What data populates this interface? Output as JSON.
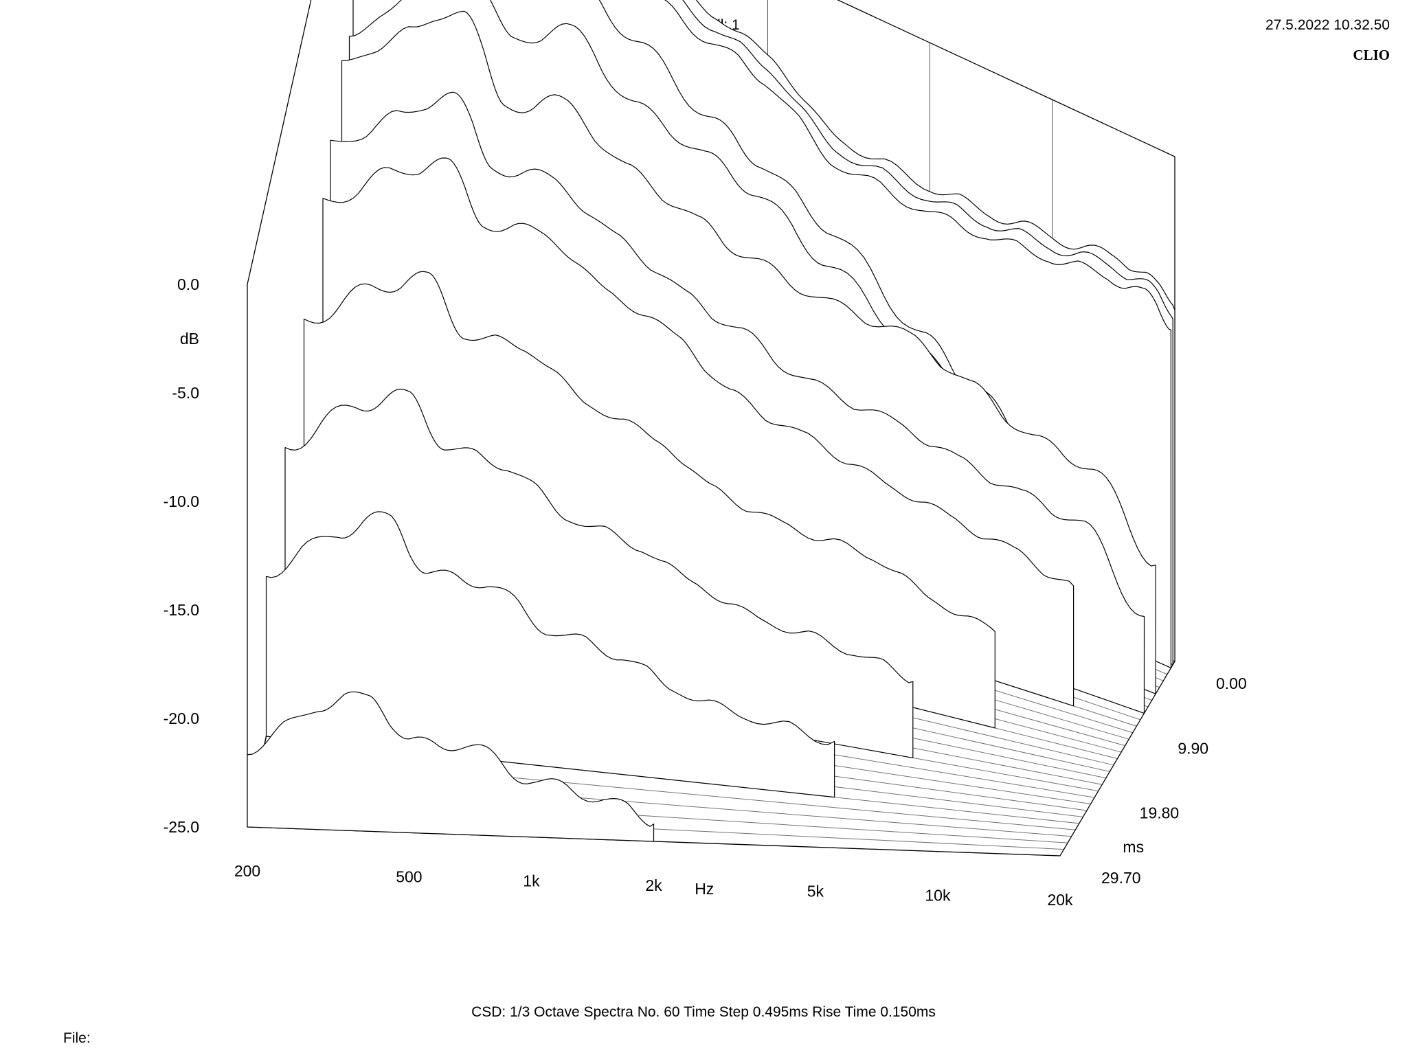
{
  "header": {
    "title": "Waterfall: 1",
    "datetime": "27.5.2022 10.32.50",
    "brand": "CLIO"
  },
  "footer": {
    "info": "CSD:   1/3 Octave   Spectra No. 60   Time Step 0.495ms   Rise Time 0.150ms",
    "file_label": "File:"
  },
  "colors": {
    "background": "#ffffff",
    "ink": "#000000"
  },
  "chart_data": {
    "type": "waterfall",
    "title": "Waterfall: 1",
    "xlabel": "Hz",
    "ylabel": "dB",
    "zlabel": "ms",
    "x_scale": "log",
    "xlim": [
      200,
      20000
    ],
    "ylim": [
      -25,
      0
    ],
    "zlim": [
      0,
      29.7
    ],
    "x_ticks": [
      {
        "value": 200,
        "label": "200"
      },
      {
        "value": 500,
        "label": "500"
      },
      {
        "value": 1000,
        "label": "1k"
      },
      {
        "value": 2000,
        "label": "2k"
      },
      {
        "value": 5000,
        "label": "5k"
      },
      {
        "value": 10000,
        "label": "10k"
      },
      {
        "value": 20000,
        "label": "20k"
      }
    ],
    "y_ticks": [
      {
        "value": 0,
        "label": "0.0"
      },
      {
        "value": -5,
        "label": "-5.0"
      },
      {
        "value": -10,
        "label": "-10.0"
      },
      {
        "value": -15,
        "label": "-15.0"
      },
      {
        "value": -20,
        "label": "-20.0"
      },
      {
        "value": -25,
        "label": "-25.0"
      }
    ],
    "z_ticks": [
      {
        "value": 0,
        "label": "0.00"
      },
      {
        "value": 9.9,
        "label": "9.90"
      },
      {
        "value": 19.8,
        "label": "19.80"
      },
      {
        "value": 29.7,
        "label": "29.70"
      }
    ],
    "spectra_count": 60,
    "time_step_ms": 0.495,
    "rise_time_ms": 0.15,
    "grid": true,
    "spectra": [
      {
        "time_ms": 0.0,
        "freqs": [
          200,
          300,
          400,
          500,
          700,
          1000,
          1500,
          2000,
          3000,
          5000,
          7000,
          10000,
          14000,
          17000,
          20000
        ],
        "db": [
          -5,
          -1.8,
          0.4,
          -3.5,
          -1.2,
          -2.6,
          -3.6,
          -4.4,
          -6.9,
          -7.2,
          -7.1,
          -6.8,
          -6.4,
          -6.3,
          -7.6
        ]
      },
      {
        "time_ms": 0.495,
        "freqs": [
          200,
          300,
          400,
          500,
          700,
          1000,
          1500,
          2000,
          3000,
          5000,
          7000,
          10000,
          14000,
          17000,
          20000
        ],
        "db": [
          -5.3,
          -2.2,
          0.1,
          -3.8,
          -1.6,
          -2.9,
          -3.9,
          -4.7,
          -7.2,
          -7.5,
          -7.4,
          -7.1,
          -6.7,
          -6.6,
          -7.9
        ]
      },
      {
        "time_ms": 0.99,
        "freqs": [
          200,
          300,
          400,
          500,
          700,
          1000,
          1500,
          2000,
          3000,
          5000,
          7000,
          10000,
          14000,
          17000,
          20000
        ],
        "db": [
          -5.8,
          -2.7,
          -0.4,
          -4.2,
          -2.1,
          -3.3,
          -4.3,
          -5.1,
          -7.6,
          -7.9,
          -7.8,
          -7.5,
          -7.1,
          -7.0,
          -8.3
        ]
      },
      {
        "time_ms": 1.98,
        "freqs": [
          200,
          300,
          400,
          500,
          700,
          1000,
          1500,
          2000,
          3000,
          5000,
          7000,
          10000,
          14000
        ],
        "db": [
          -8,
          -4,
          -2,
          -4.4,
          -3.5,
          -5.2,
          -7.4,
          -8.6,
          -10.4,
          -13.5,
          -15.4,
          -18.2,
          -19.3
        ]
      },
      {
        "time_ms": 2.97,
        "freqs": [
          200,
          300,
          400,
          500,
          700,
          1000,
          1500,
          2000,
          3000,
          5000,
          7000,
          10000,
          14000
        ],
        "db": [
          -10.2,
          -6.4,
          -4.4,
          -7,
          -5.2,
          -7.6,
          -8.6,
          -9.5,
          -11.5,
          -13.8,
          -14.6,
          -16.6,
          -19.8
        ]
      },
      {
        "time_ms": 4.95,
        "freqs": [
          200,
          300,
          400,
          500,
          700,
          1000,
          1500,
          2000,
          3000,
          5000,
          7000,
          10000,
          14000,
          20000
        ],
        "db": [
          -9.8,
          -6.8,
          -4.8,
          -8.8,
          -7.4,
          -9.4,
          -10.6,
          -11.5,
          -12.1,
          -12.2,
          -13.4,
          -14.8,
          -15.2,
          -18.7
        ]
      },
      {
        "time_ms": 7.92,
        "freqs": [
          200,
          300,
          400,
          500,
          700,
          1000,
          1500,
          2000,
          3000,
          5000,
          7000,
          10000,
          14000,
          20000
        ],
        "db": [
          -11.2,
          -8.6,
          -6.6,
          -9.6,
          -9.1,
          -10.8,
          -12.4,
          -13.3,
          -14.6,
          -15.1,
          -15.8,
          -16.4,
          -16.8,
          -20.3
        ]
      },
      {
        "time_ms": 9.9,
        "freqs": [
          200,
          300,
          400,
          500,
          700,
          1000,
          1500,
          2000,
          3000,
          5000,
          7000,
          10000,
          14000
        ],
        "db": [
          -12.3,
          -9.8,
          -8.4,
          -10.9,
          -10.4,
          -12.2,
          -13.3,
          -15.2,
          -16.1,
          -17.2,
          -17.8,
          -18.4,
          -19.2
        ]
      },
      {
        "time_ms": 14.85,
        "freqs": [
          200,
          300,
          400,
          500,
          700,
          1000,
          1500,
          2000,
          3000,
          5000,
          7000,
          10000
        ],
        "db": [
          -13.8,
          -11.4,
          -10.2,
          -12.6,
          -12.5,
          -14.4,
          -15.3,
          -16.9,
          -17.8,
          -18.3,
          -19.6,
          -20.4
        ]
      },
      {
        "time_ms": 19.8,
        "freqs": [
          200,
          300,
          400,
          500,
          700,
          1000,
          1500,
          2000,
          3000,
          5000,
          7000
        ],
        "db": [
          -15.6,
          -13.1,
          -12.1,
          -14.3,
          -14.7,
          -16.6,
          -17.4,
          -18.6,
          -19.8,
          -20.5,
          -21.4
        ]
      },
      {
        "time_ms": 24.75,
        "freqs": [
          200,
          300,
          400,
          500,
          700,
          1000,
          1500,
          2000,
          3000,
          5000
        ],
        "db": [
          -17.4,
          -15.2,
          -14.1,
          -16.6,
          -16.8,
          -18.7,
          -19.5,
          -20.8,
          -21.7,
          -22.4
        ]
      },
      {
        "time_ms": 29.7,
        "freqs": [
          200,
          300,
          400,
          500,
          700,
          1000,
          1500,
          2000
        ],
        "db": [
          -21.5,
          -19.4,
          -18.7,
          -20.8,
          -20.9,
          -22.4,
          -23.1,
          -24.2
        ]
      }
    ]
  }
}
